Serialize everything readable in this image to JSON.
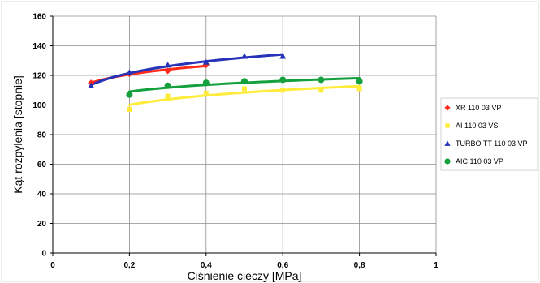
{
  "chart_data": {
    "type": "scatter",
    "xlabel": "Ciśnienie cieczy [MPa]",
    "ylabel": "Kąt rozpylenia [stopnie]",
    "xlim": [
      0,
      1
    ],
    "ylim": [
      0,
      160
    ],
    "x_ticks": [
      "0",
      "0,2",
      "0,4",
      "0,6",
      "0,8",
      "1"
    ],
    "x_tick_values": [
      0,
      0.2,
      0.4,
      0.6,
      0.8,
      1.0
    ],
    "y_ticks": [
      "0",
      "20",
      "40",
      "60",
      "80",
      "100",
      "120",
      "140",
      "160"
    ],
    "y_tick_values": [
      0,
      20,
      40,
      60,
      80,
      100,
      120,
      140,
      160
    ],
    "grid": true,
    "trendline": "logarithmic",
    "legend_position": "right",
    "series": [
      {
        "name": "XR 110 03 VP",
        "color": "#ff2a1a",
        "marker": "diamond",
        "x": [
          0.1,
          0.2,
          0.3,
          0.4
        ],
        "y": [
          115,
          121,
          123,
          127
        ],
        "trend": [
          0.1,
          0.4
        ]
      },
      {
        "name": "AI 110 03 VS",
        "color": "#ffec3a",
        "marker": "square",
        "x": [
          0.2,
          0.3,
          0.4,
          0.5,
          0.6,
          0.7,
          0.8
        ],
        "y": [
          97,
          106,
          108,
          111,
          110,
          110,
          111
        ],
        "trend": [
          0.2,
          0.8
        ]
      },
      {
        "name": "TURBO TT 110 03 VP",
        "color": "#2632b8",
        "marker": "triangle",
        "x": [
          0.1,
          0.2,
          0.3,
          0.4,
          0.5,
          0.6
        ],
        "y": [
          113,
          122,
          127,
          129,
          133,
          133
        ],
        "trend": [
          0.1,
          0.6
        ]
      },
      {
        "name": "AIC 110 03 VP",
        "color": "#14a03c",
        "marker": "circle",
        "x": [
          0.2,
          0.3,
          0.4,
          0.5,
          0.6,
          0.7,
          0.8
        ],
        "y": [
          107,
          113,
          115,
          116,
          117,
          117,
          116
        ],
        "trend": [
          0.2,
          0.8
        ]
      }
    ]
  }
}
